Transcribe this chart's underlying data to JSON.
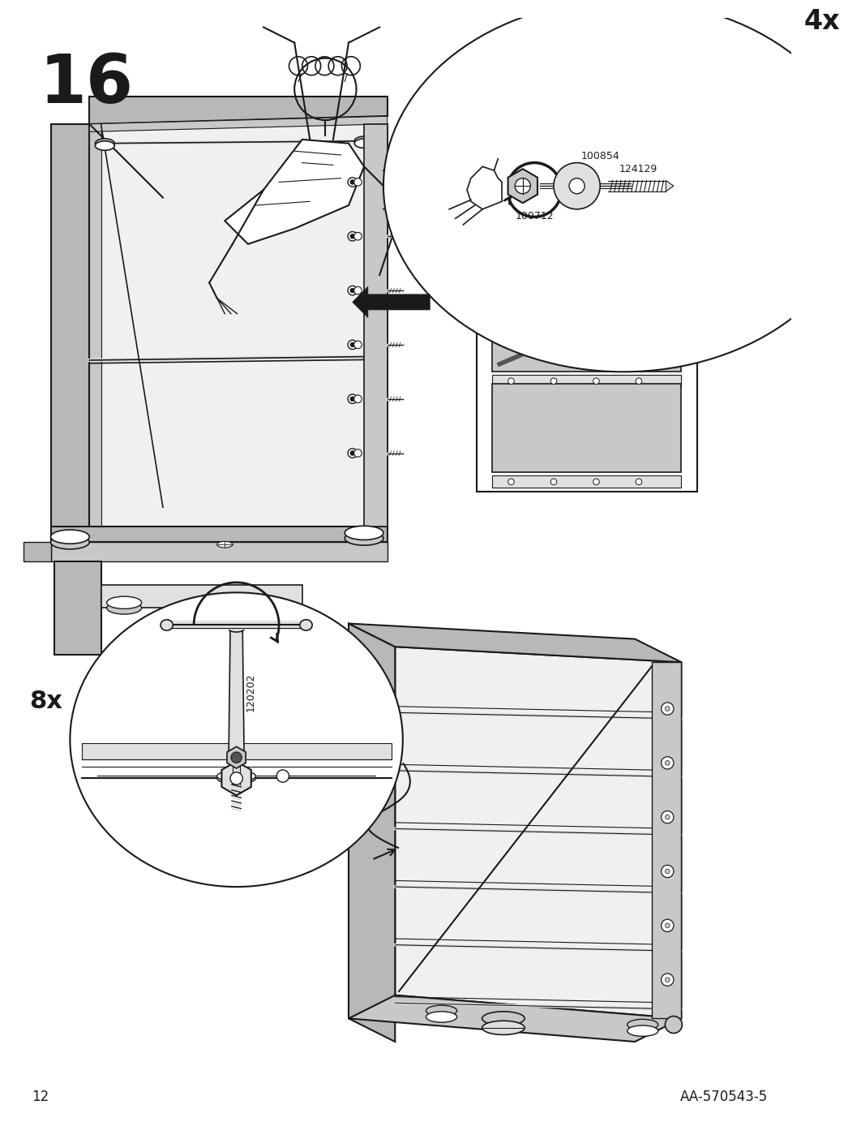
{
  "background_color": "#ffffff",
  "step_number": "16",
  "step_number_fontsize": 60,
  "page_number": "12",
  "page_number_fontsize": 12,
  "article_number": "AA-570543-5",
  "article_number_fontsize": 12,
  "label_4x": "4x",
  "label_8x": "8x",
  "line_color": "#1a1a1a",
  "fill_gray": "#b8b8b8",
  "fill_light": "#e0e0e0",
  "fill_mid": "#c8c8c8"
}
